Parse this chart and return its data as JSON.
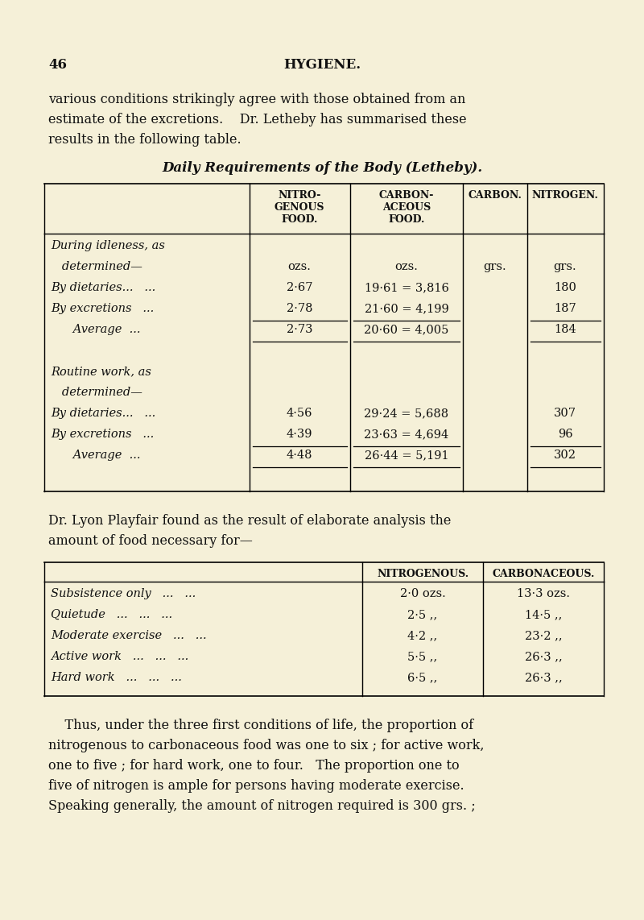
{
  "bg_color": "#f5f0d8",
  "page_number": "46",
  "page_header": "HYGIENE.",
  "intro_text": [
    "various conditions strikingly agree with those obtained from an",
    "estimate of the excretions.    Dr. Letheby has summarised these",
    "results in the following table."
  ],
  "table1_title": "Daily Requirements of the Body (Letheby).",
  "inter_text": [
    "Dr. Lyon Playfair found as the result of elaborate analysis the",
    "amount of food necessary for—"
  ],
  "footer_text": [
    "    Thus, under the three first conditions of life, the proportion of",
    "nitrogenous to carbonaceous food was one to six ; for active work,",
    "one to five ; for hard work, one to four.   The proportion one to",
    "five of nitrogen is ample for persons having moderate exercise.",
    "Speaking generally, the amount of nitrogen required is 300 grs. ;"
  ]
}
